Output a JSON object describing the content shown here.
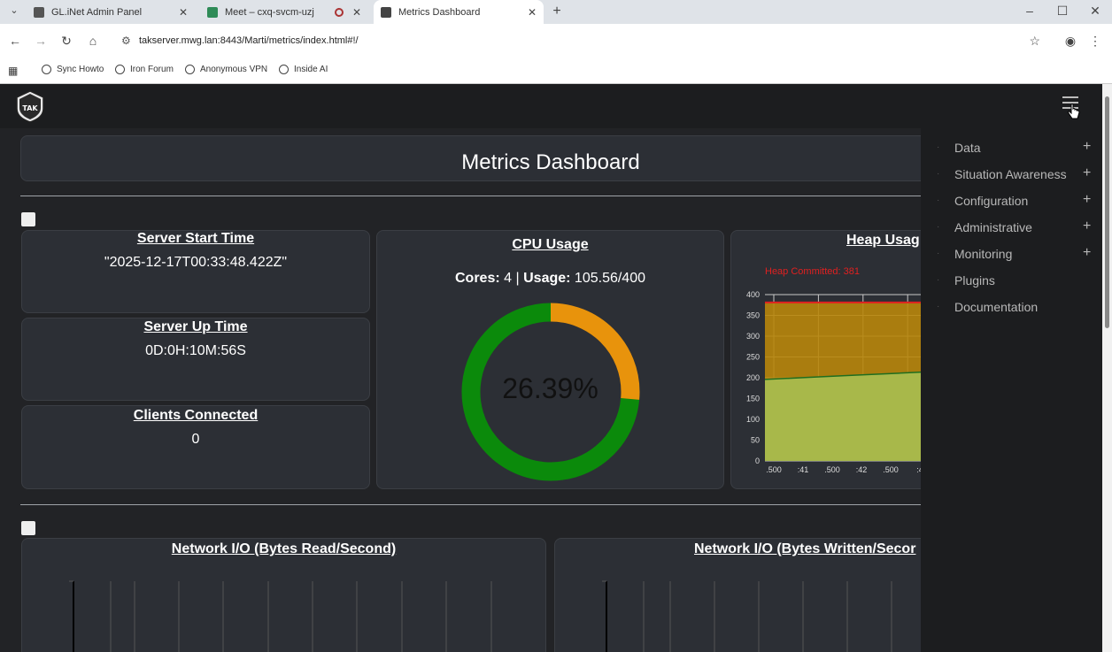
{
  "browser": {
    "tabs": [
      {
        "title": "GL.iNet Admin Panel",
        "favicon_color": "#555555"
      },
      {
        "title": "Meet – cxq-svcm-uzj",
        "favicon_color": "#2e8b57"
      },
      {
        "title": "Metrics Dashboard",
        "favicon_color": "#444444"
      }
    ],
    "url": "takserver.mwg.lan:8443/Marti/metrics/index.html#!/",
    "bookmarks": [
      "Sync Howto",
      "Iron Forum",
      "Anonymous VPN",
      "Inside AI"
    ]
  },
  "app": {
    "logo_text": "TAK",
    "page_title": "Metrics Dashboard"
  },
  "cards": {
    "server_start": {
      "title": "Server Start Time",
      "value": "\"2025-12-17T00:33:48.422Z\""
    },
    "server_up": {
      "title": "Server Up Time",
      "value": "0D:0H:10M:56S"
    },
    "clients": {
      "title": "Clients Connected",
      "value": "0"
    },
    "cpu": {
      "title": "CPU Usage",
      "cores_label": "Cores:",
      "cores": "4",
      "usage_label": "Usage:",
      "usage": "105.56/400",
      "percent_text": "26.39%",
      "percent": 26.39,
      "used_color": "#e8930c",
      "free_color": "#0b8a0b"
    },
    "heap": {
      "title": "Heap Usag",
      "legend": "Heap Committed: 381"
    },
    "net_read": {
      "title": "Network I/O (Bytes Read/Second)"
    },
    "net_write": {
      "title": "Network I/O (Bytes Written/Secor"
    }
  },
  "chart_data": {
    "type": "area",
    "title": "Heap Usag",
    "legend": [
      "Heap Committed: 381"
    ],
    "x": [
      ".500",
      ":41",
      ".500",
      ":42",
      ".500",
      ":4"
    ],
    "ylim": [
      0,
      400
    ],
    "yticks": [
      0,
      50,
      100,
      150,
      200,
      250,
      300,
      350,
      400
    ],
    "series": [
      {
        "name": "Heap Committed: 381",
        "values": [
          381,
          381,
          381,
          381,
          381,
          381
        ],
        "color": "#b8860b"
      },
      {
        "values": [
          196,
          201,
          206,
          211,
          216,
          221
        ],
        "color": "#a8b84a"
      }
    ]
  },
  "side_menu": {
    "items": [
      {
        "label": "Data",
        "expandable": true
      },
      {
        "label": "Situation Awareness",
        "expandable": true
      },
      {
        "label": "Configuration",
        "expandable": true
      },
      {
        "label": "Administrative",
        "expandable": true
      },
      {
        "label": "Monitoring",
        "expandable": true
      },
      {
        "label": "Plugins",
        "expandable": false
      },
      {
        "label": "Documentation",
        "expandable": false
      }
    ]
  }
}
